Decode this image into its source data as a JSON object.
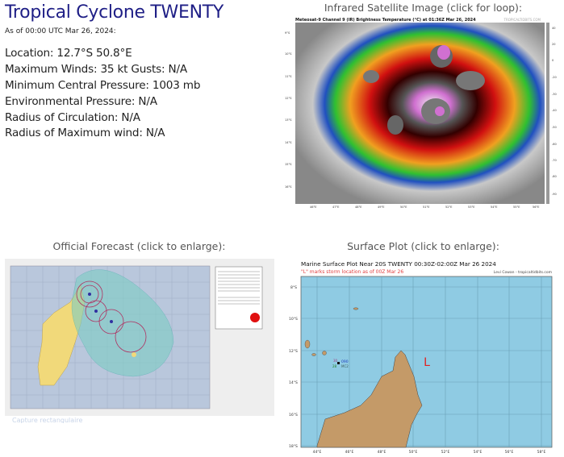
{
  "header": {
    "title": "Tropical Cyclone TWENTY",
    "as_of": "As of 00:00 UTC Mar 26, 2024:"
  },
  "info": [
    "Location: 12.7°S 50.8°E",
    "Maximum Winds: 35 kt  Gusts: N/A",
    "Minimum Central Pressure: 1003 mb",
    "Environmental Pressure: N/A",
    "Radius of Circulation: N/A",
    "Radius of Maximum wind: N/A"
  ],
  "satellite": {
    "heading": "Infrared Satellite Image (click for loop):",
    "image_title": "Meteosat-9 Channel 9 (IR) Brightness Temperature (°C) at 01:36Z Mar 26, 2024",
    "credit": "TROPICALTIDBITS.COM",
    "lat_labels": [
      "9°S",
      "10°S",
      "11°S",
      "12°S",
      "13°S",
      "14°S",
      "15°S",
      "16°S"
    ],
    "lon_labels": [
      "46°E",
      "47°E",
      "48°E",
      "49°E",
      "50°E",
      "51°E",
      "52°E",
      "53°E",
      "54°E",
      "55°E",
      "56°E"
    ],
    "colorbar_labels": [
      "40",
      "20",
      "0",
      "-20",
      "-30",
      "-40",
      "-50",
      "-60",
      "-70",
      "-80",
      "-90"
    ]
  },
  "forecast": {
    "heading": "Official Forecast (click to enlarge):"
  },
  "surface": {
    "heading": "Surface Plot (click to enlarge):",
    "image_title": "Marine Surface Plot Near 20S TWENTY 00:30Z-02:00Z Mar 26 2024",
    "subtitle": "\"L\" marks storm location as of 00Z Mar 26",
    "credit": "Levi Cowan - tropicaltidbits.com",
    "storm_marker": "L",
    "lat_labels": [
      "8°S",
      "10°S",
      "12°S",
      "14°S",
      "16°S",
      "18°S"
    ],
    "lon_labels": [
      "44°E",
      "46°E",
      "48°E",
      "50°E",
      "52°E",
      "54°E",
      "56°E",
      "58°E"
    ],
    "station_labels": [
      "090",
      "MC2",
      "30",
      "28"
    ],
    "colors": {
      "ocean": "#8fcbe3",
      "land": "#c49a68",
      "storm": "#e02020"
    }
  },
  "overlay": {
    "capture_hint": "Capture rectangulaire"
  }
}
